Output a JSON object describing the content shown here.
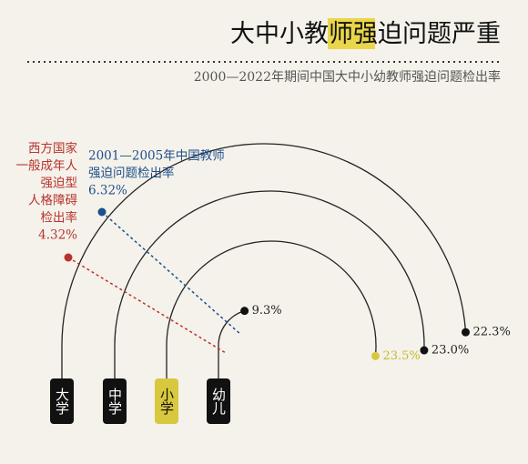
{
  "chart_data": {
    "type": "arc",
    "title": [
      "大中小教师",
      "强迫",
      "问题严重"
    ],
    "subtitle": "2000—2022年期间中国大中小幼教师强迫问题检出率",
    "categories": [
      "大学",
      "中学",
      "小学",
      "幼儿"
    ],
    "values": [
      22.3,
      23.0,
      23.5,
      9.3
    ],
    "value_labels": [
      "22.3%",
      "23.0%",
      "23.5%",
      "9.3%"
    ],
    "colors": [
      "#111111",
      "#111111",
      "#d8c83e",
      "#111111"
    ],
    "annotations": [
      {
        "lines": [
          "2001—2005年中国教师",
          "强迫问题检出率"
        ],
        "value": 6.32,
        "value_label": "6.32%",
        "color": "#1f4e8c"
      },
      {
        "lines": [
          "西方国家",
          "一般成年人",
          "强迫型",
          "人格障碍",
          "检出率"
        ],
        "value": 4.32,
        "value_label": "4.32%",
        "color": "#b8332e"
      }
    ]
  }
}
